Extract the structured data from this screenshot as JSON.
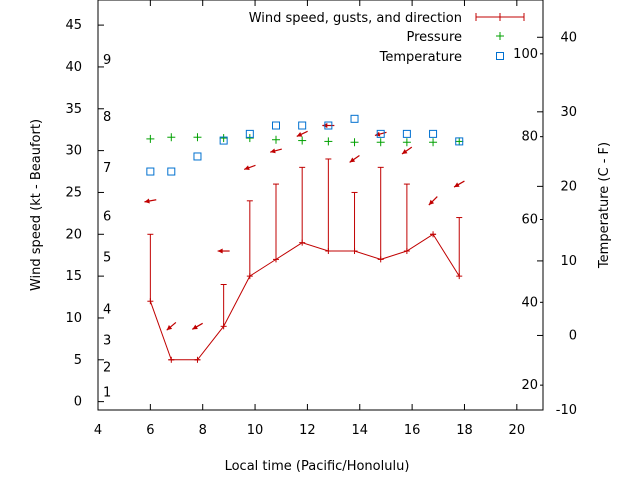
{
  "chart_data": {
    "type": "line",
    "xlabel": "Local time (Pacific/Honolulu)",
    "ylabel_left": "Wind speed (kt - Beaufort)",
    "ylabel_right": "Temperature (C - F)",
    "xlim": [
      4,
      21
    ],
    "ylim": [
      -1,
      48
    ],
    "xticks": [
      "4",
      "6",
      "8",
      "10",
      "12",
      "14",
      "16",
      "18",
      "20"
    ],
    "xtick_values": [
      4,
      6,
      8,
      10,
      12,
      14,
      16,
      18,
      20
    ],
    "yticks_left": [
      "0",
      "5",
      "10",
      "15",
      "20",
      "25",
      "30",
      "35",
      "40",
      "45"
    ],
    "ytick_left_values": [
      0,
      5,
      10,
      15,
      20,
      25,
      30,
      35,
      40,
      45
    ],
    "beaufort_labels": [
      "1",
      "2",
      "3",
      "4",
      "5",
      "6",
      "7",
      "8",
      "9"
    ],
    "beaufort_y": [
      1.1,
      4.1,
      7.3,
      11.0,
      17.2,
      22.1,
      27.9,
      34.0,
      40.8
    ],
    "temp_c_ticks": [
      "-10",
      "0",
      "10",
      "20",
      "30",
      "40"
    ],
    "temp_c_values": [
      -10,
      0,
      10,
      20,
      30,
      40
    ],
    "temp_f_ticks": [
      "20",
      "40",
      "60",
      "80",
      "100"
    ],
    "temp_f_values": [
      20,
      40,
      60,
      80,
      100
    ],
    "temp_c_range": [
      -10,
      45
    ],
    "legend": {
      "position": "top-right",
      "entries": [
        "Wind speed, gusts, and direction",
        "Pressure",
        "Temperature"
      ]
    },
    "colors": {
      "wind": "#c00000",
      "pressure": "#00a000",
      "temperature": "#0070d0"
    },
    "wind": {
      "x": [
        6,
        6.8,
        7.8,
        8.8,
        9.8,
        10.8,
        11.8,
        12.8,
        13.8,
        14.8,
        15.8,
        16.8,
        17.8
      ],
      "speed": [
        12,
        5,
        5,
        9,
        15,
        17,
        19,
        18,
        18,
        17,
        18,
        20,
        15
      ],
      "gust": [
        20,
        5,
        5,
        14,
        24,
        26,
        28,
        29,
        25,
        28,
        26,
        20,
        22
      ],
      "arrow_y": [
        24,
        9,
        9,
        18,
        28,
        30,
        32,
        33,
        29,
        32,
        30,
        24,
        26
      ],
      "direction_deg": [
        80,
        50,
        60,
        90,
        70,
        75,
        65,
        90,
        55,
        75,
        55,
        45,
        60
      ]
    },
    "pressure": {
      "x": [
        6,
        6.8,
        7.8,
        8.8,
        9.8,
        10.8,
        11.8,
        12.8,
        13.8,
        14.8,
        15.8,
        16.8,
        17.8
      ],
      "y": [
        31.4,
        31.6,
        31.6,
        31.5,
        31.5,
        31.3,
        31.2,
        31.1,
        31.0,
        31.0,
        31.0,
        31.0,
        31.1
      ]
    },
    "temperature": {
      "x": [
        6,
        6.8,
        7.8,
        8.8,
        9.8,
        10.8,
        11.8,
        12.8,
        13.8,
        14.8,
        15.8,
        16.8,
        17.8
      ],
      "y": [
        27.5,
        27.5,
        29.3,
        31.2,
        32.0,
        33.0,
        33.0,
        33.0,
        33.8,
        32.0,
        32.0,
        32.0,
        31.1
      ]
    }
  }
}
